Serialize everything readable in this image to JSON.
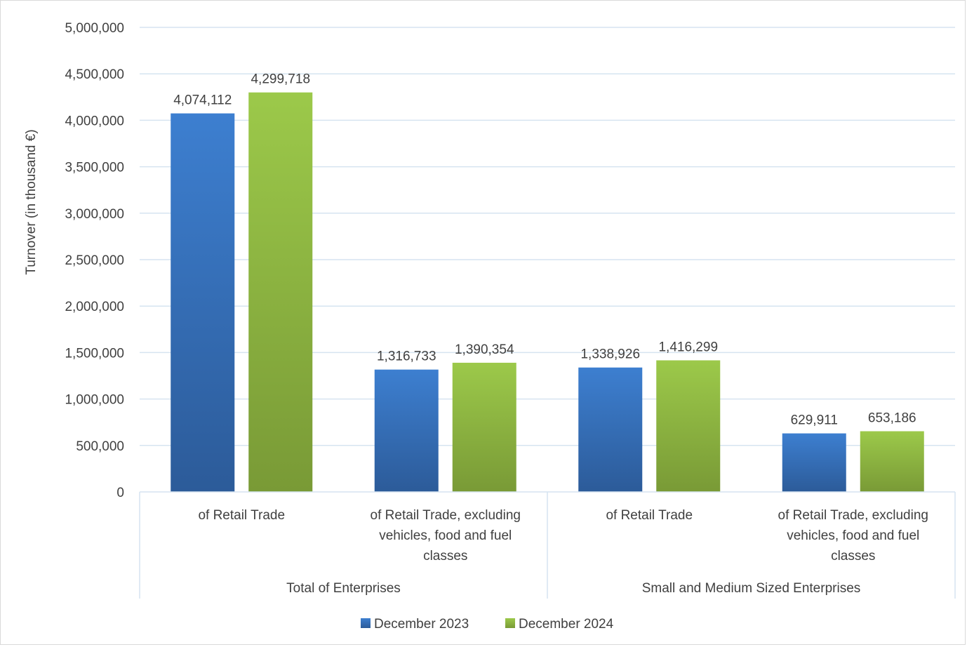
{
  "chart_data": {
    "type": "bar",
    "ylabel": "Turnover (in thousand €)",
    "ylim": [
      0,
      5000000
    ],
    "ytick_step": 500000,
    "yticks": [
      "0",
      "500,000",
      "1,000,000",
      "1,500,000",
      "2,000,000",
      "2,500,000",
      "3,000,000",
      "3,500,000",
      "4,000,000",
      "4,500,000",
      "5,000,000"
    ],
    "groups": [
      {
        "label": "Total of Enterprises",
        "categories": [
          {
            "lines": [
              "of Retail Trade"
            ]
          },
          {
            "lines": [
              "of Retail Trade, excluding",
              "vehicles, food and fuel",
              "classes"
            ]
          }
        ]
      },
      {
        "label": "Small and Medium Sized Enterprises",
        "categories": [
          {
            "lines": [
              "of Retail Trade"
            ]
          },
          {
            "lines": [
              "of Retail Trade, excluding",
              "vehicles, food and fuel",
              "classes"
            ]
          }
        ]
      }
    ],
    "series": [
      {
        "name": "December 2023",
        "color_top": "#3d7fd0",
        "color_bottom": "#2c5b99",
        "values": [
          4074112,
          1316733,
          1338926,
          629911
        ],
        "labels": [
          "4,074,112",
          "1,316,733",
          "1,338,926",
          "629,911"
        ]
      },
      {
        "name": "December 2024",
        "color_top": "#9cc94a",
        "color_bottom": "#799a36",
        "values": [
          4299718,
          1390354,
          1416299,
          653186
        ],
        "labels": [
          "4,299,718",
          "1,390,354",
          "1,416,299",
          "653,186"
        ]
      }
    ],
    "grid": true,
    "gridline_color": "#d6e4f0",
    "legend_position": "bottom"
  }
}
